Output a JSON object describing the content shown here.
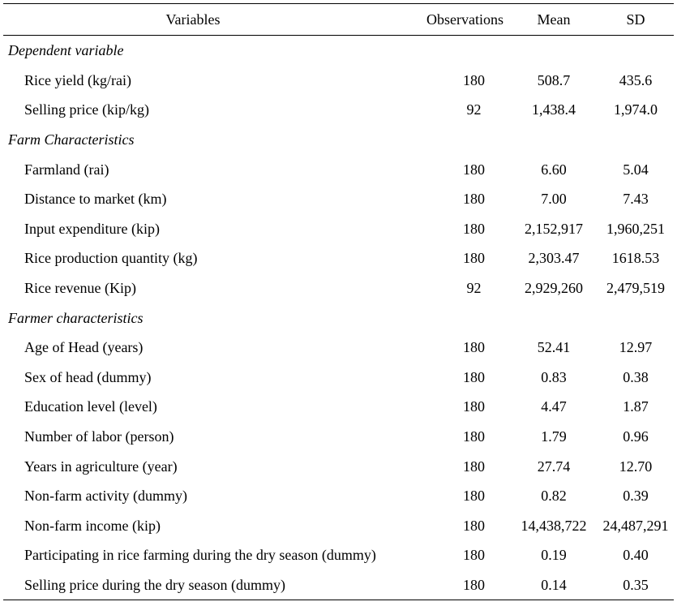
{
  "table": {
    "headers": {
      "variables": "Variables",
      "observations": "Observations",
      "mean": "Mean",
      "sd": "SD"
    },
    "sections": [
      {
        "title": "Dependent variable",
        "rows": [
          {
            "name": "Rice yield (kg/rai)",
            "obs": "180",
            "mean": "508.7",
            "sd": "435.6"
          },
          {
            "name": "Selling price (kip/kg)",
            "obs": "92",
            "mean": "1,438.4",
            "sd": "1,974.0"
          }
        ]
      },
      {
        "title": "Farm Characteristics",
        "rows": [
          {
            "name": "Farmland (rai)",
            "obs": "180",
            "mean": "6.60",
            "sd": "5.04"
          },
          {
            "name": "Distance to market (km)",
            "obs": "180",
            "mean": "7.00",
            "sd": "7.43"
          },
          {
            "name": "Input expenditure (kip)",
            "obs": "180",
            "mean": "2,152,917",
            "sd": "1,960,251"
          },
          {
            "name": "Rice production quantity (kg)",
            "obs": "180",
            "mean": "2,303.47",
            "sd": "1618.53"
          },
          {
            "name": "Rice revenue (Kip)",
            "obs": "92",
            "mean": "2,929,260",
            "sd": "2,479,519"
          }
        ]
      },
      {
        "title": "Farmer characteristics",
        "rows": [
          {
            "name": "Age of Head (years)",
            "obs": "180",
            "mean": "52.41",
            "sd": "12.97"
          },
          {
            "name": "Sex of head (dummy)",
            "obs": "180",
            "mean": "0.83",
            "sd": "0.38"
          },
          {
            "name": "Education level (level)",
            "obs": "180",
            "mean": "4.47",
            "sd": "1.87"
          },
          {
            "name": "Number of labor (person)",
            "obs": "180",
            "mean": "1.79",
            "sd": "0.96"
          },
          {
            "name": "Years in agriculture (year)",
            "obs": "180",
            "mean": "27.74",
            "sd": "12.70"
          },
          {
            "name": "Non-farm activity (dummy)",
            "obs": "180",
            "mean": "0.82",
            "sd": "0.39"
          },
          {
            "name": "Non-farm income (kip)",
            "obs": "180",
            "mean": "14,438,722",
            "sd": "24,487,291"
          },
          {
            "name": "Participating in rice farming during the dry season (dummy)",
            "obs": "180",
            "mean": "0.19",
            "sd": "0.40"
          },
          {
            "name": "Selling price during the dry season (dummy)",
            "obs": "180",
            "mean": "0.14",
            "sd": "0.35"
          }
        ]
      }
    ]
  }
}
